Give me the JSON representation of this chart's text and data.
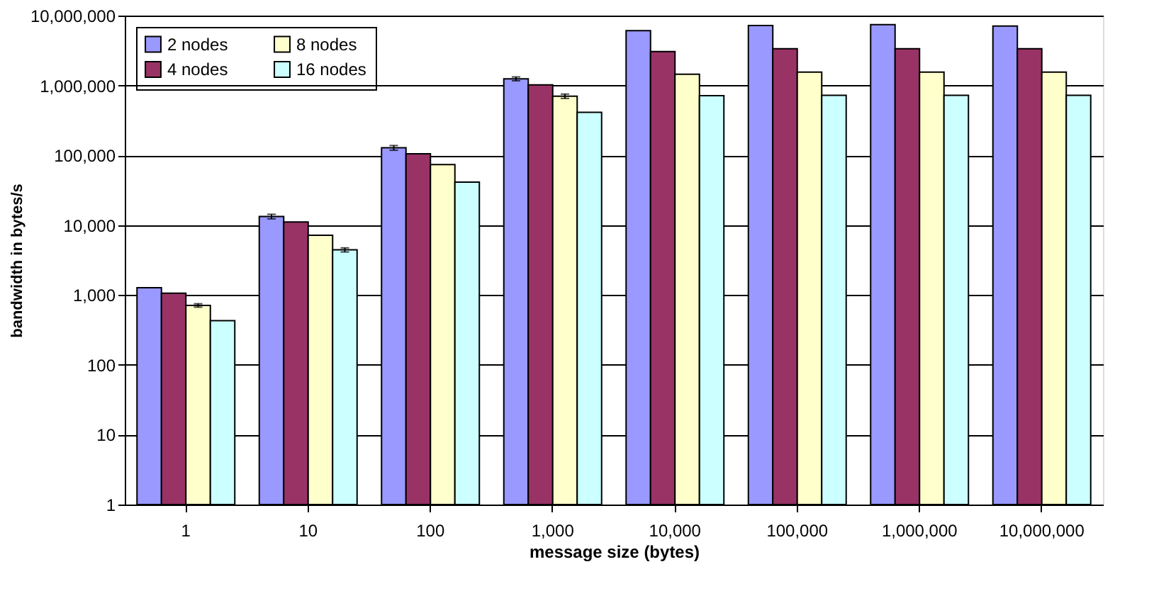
{
  "chart_data": {
    "type": "bar",
    "xlabel": "message size (bytes)",
    "ylabel": "bandwidth in bytes/s",
    "categories": [
      "1",
      "10",
      "100",
      "1,000",
      "10,000",
      "100,000",
      "1,000,000",
      "10,000,000"
    ],
    "series": [
      {
        "name": "2 nodes",
        "color": "#9999ff",
        "values": [
          1270,
          13300,
          128000,
          1245000,
          6070000,
          7220000,
          7420000,
          7080000
        ],
        "errors": [
          null,
          1000,
          10000,
          80000,
          null,
          null,
          null,
          null
        ]
      },
      {
        "name": "4 nodes",
        "color": "#993366",
        "values": [
          1060,
          11100,
          105000,
          1020000,
          3060000,
          3360000,
          3360000,
          3360000
        ]
      },
      {
        "name": "8 nodes",
        "color": "#ffffcc",
        "values": [
          710,
          7150,
          73500,
          702000,
          1450000,
          1550000,
          1550000,
          1550000
        ],
        "errors": [
          40,
          null,
          null,
          50000,
          null,
          null,
          null,
          null
        ]
      },
      {
        "name": "16 nodes",
        "color": "#ccffff",
        "values": [
          430,
          4430,
          41400,
          412000,
          712000,
          721000,
          721000,
          721000
        ],
        "errors": [
          null,
          300,
          null,
          null,
          null,
          null,
          null,
          null
        ]
      }
    ],
    "log": true,
    "ylim": [
      1,
      10000000
    ],
    "yticks": [
      1,
      10,
      100,
      {
        "value": 1000,
        "label": "1,000"
      },
      {
        "value": 10000,
        "label": "10,000"
      },
      {
        "value": 100000,
        "label": "100,000"
      },
      {
        "value": 1000000,
        "label": "1,000,000"
      },
      {
        "value": 10000000,
        "label": "10,000,000"
      }
    ],
    "grid": "y",
    "legend": "top left"
  }
}
